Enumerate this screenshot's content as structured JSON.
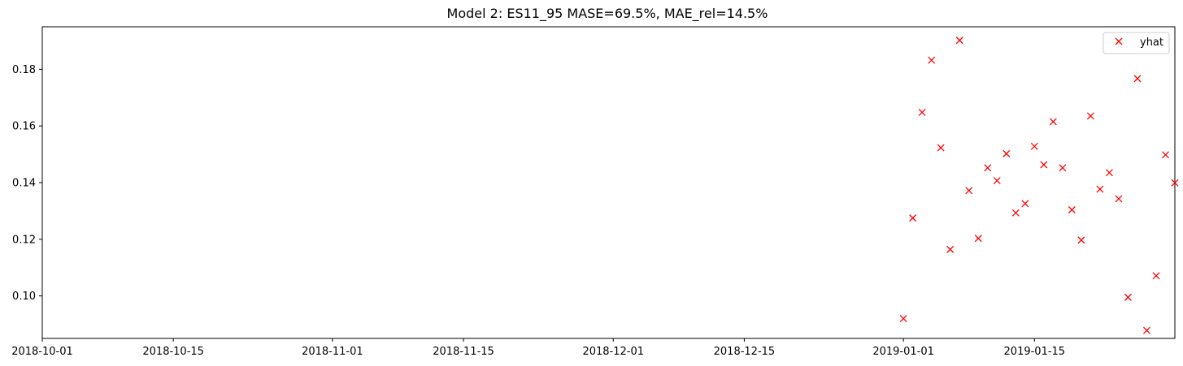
{
  "chart_data": {
    "type": "scatter",
    "title": "Model 2: ES11_95 MASE=69.5%, MAE_rel=14.5%",
    "xlabel": "",
    "ylabel": "",
    "x_type": "date",
    "xlim": [
      "2018-10-01",
      "2019-01-30"
    ],
    "ylim": [
      0.085,
      0.195
    ],
    "x_ticks": [
      "2018-10-01",
      "2018-10-15",
      "2018-11-01",
      "2018-11-15",
      "2018-12-01",
      "2018-12-15",
      "2019-01-01",
      "2019-01-15"
    ],
    "y_ticks": [
      "0.10",
      "0.12",
      "0.14",
      "0.16",
      "0.18"
    ],
    "grid": false,
    "legend": {
      "position": "top-right",
      "entries": [
        "yhat"
      ]
    },
    "series": [
      {
        "name": "yhat",
        "marker": "x",
        "color": "#ff0000",
        "x": [
          "2019-01-01",
          "2019-01-02",
          "2019-01-03",
          "2019-01-04",
          "2019-01-05",
          "2019-01-06",
          "2019-01-07",
          "2019-01-08",
          "2019-01-09",
          "2019-01-10",
          "2019-01-11",
          "2019-01-12",
          "2019-01-13",
          "2019-01-14",
          "2019-01-15",
          "2019-01-16",
          "2019-01-17",
          "2019-01-18",
          "2019-01-19",
          "2019-01-20",
          "2019-01-21",
          "2019-01-22",
          "2019-01-23",
          "2019-01-24",
          "2019-01-25",
          "2019-01-26",
          "2019-01-27",
          "2019-01-28",
          "2019-01-29",
          "2019-01-30"
        ],
        "y": [
          0.092,
          0.1275,
          0.1648,
          0.1832,
          0.1523,
          0.1164,
          0.1902,
          0.1372,
          0.1203,
          0.1452,
          0.1407,
          0.1502,
          0.1293,
          0.1326,
          0.1528,
          0.1463,
          0.1615,
          0.1452,
          0.1304,
          0.1197,
          0.1635,
          0.1377,
          0.1435,
          0.1343,
          0.0995,
          0.1767,
          0.0878,
          0.1071,
          0.1498,
          0.1399
        ]
      }
    ]
  }
}
